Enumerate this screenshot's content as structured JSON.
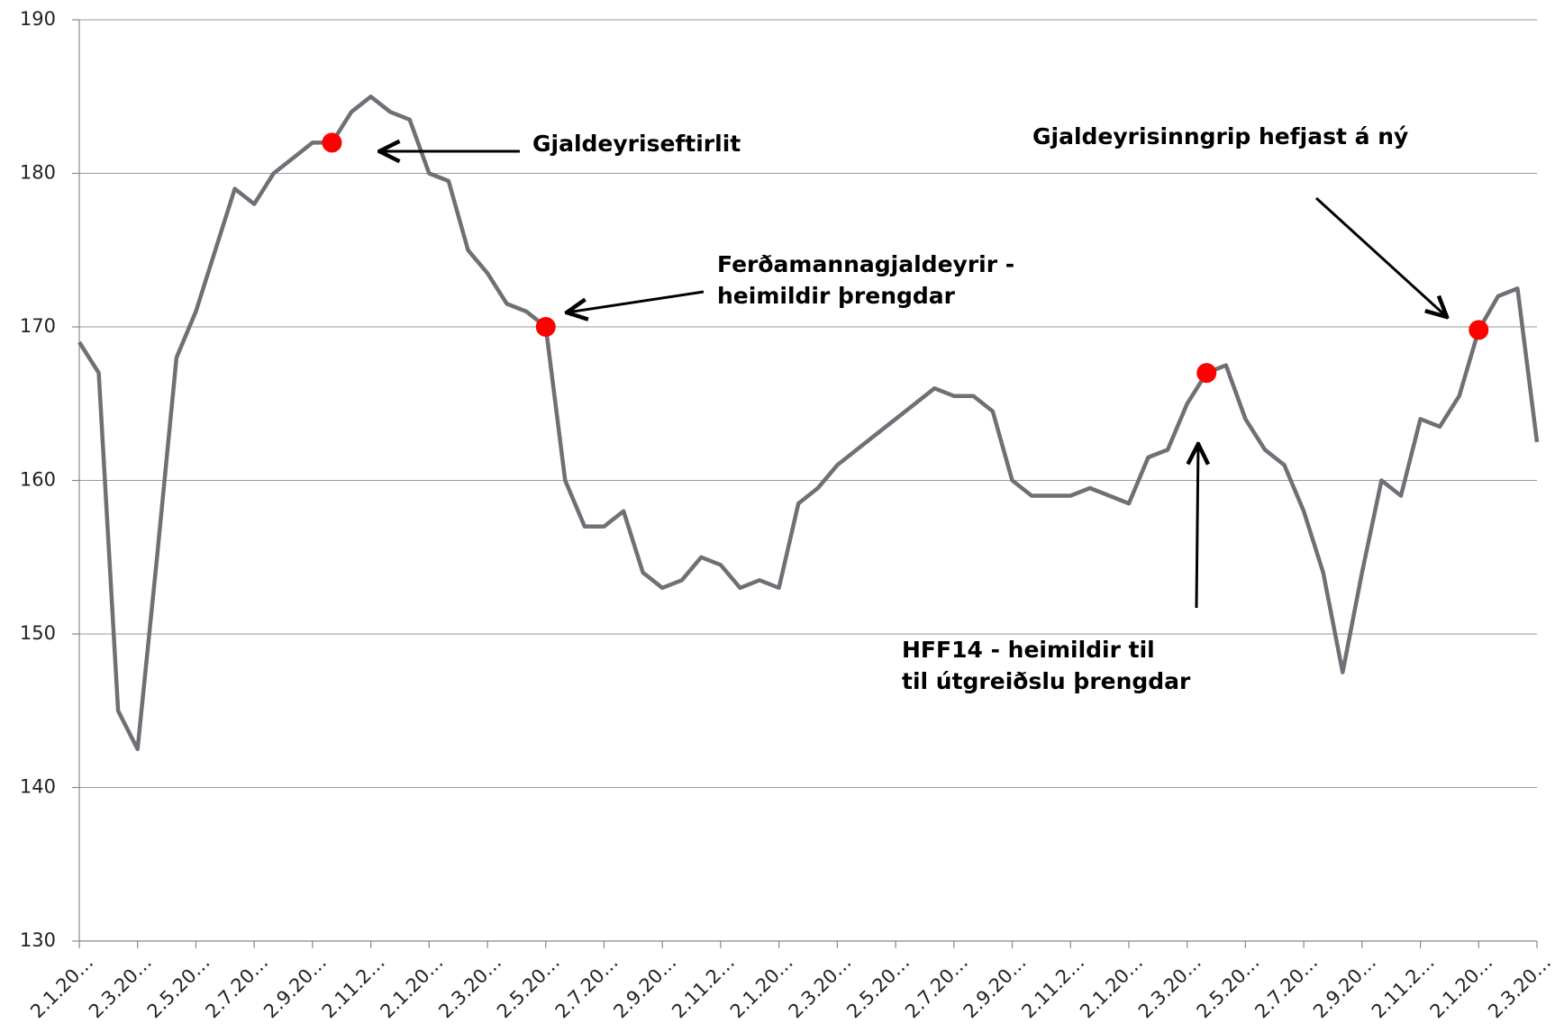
{
  "chart_data": {
    "type": "line",
    "categories": [
      "2.1.20…",
      null,
      null,
      "2.3.20…",
      null,
      null,
      "2.5.20…",
      null,
      null,
      "2.7.20…",
      null,
      null,
      "2.9.20…",
      null,
      null,
      "2.11.2…",
      null,
      null,
      "2.1.20…",
      null,
      null,
      "2.3.20…",
      null,
      null,
      "2.5.20…",
      null,
      null,
      "2.7.20…",
      null,
      null,
      "2.9.20…",
      null,
      null,
      "2.11.2…",
      null,
      null,
      "2.1.20…",
      null,
      null,
      "2.3.20…",
      null,
      null,
      "2.5.20…",
      null,
      null,
      "2.7.20…",
      null,
      null,
      "2.9.20…",
      null,
      null,
      "2.11.2…",
      null,
      null,
      "2.1.20…",
      null,
      null,
      "2.3.20…",
      null,
      null,
      "2.5.20…",
      null,
      null,
      "2.7.20…",
      null,
      null,
      "2.9.20…",
      null,
      null,
      "2.11.2…",
      null,
      null,
      "2.1.20…",
      null,
      null,
      "2.3.20…"
    ],
    "values": [
      169,
      167,
      145,
      142.5,
      155,
      168,
      171,
      175,
      179,
      178,
      180,
      181,
      182,
      182,
      184,
      185,
      184,
      183.5,
      180,
      179.5,
      175,
      173.5,
      171.5,
      171,
      170,
      160,
      157,
      157,
      158,
      154,
      153,
      153.5,
      155,
      154.5,
      153,
      153.5,
      153,
      158.5,
      159.5,
      161,
      162,
      163,
      164,
      165,
      166,
      165.5,
      165.5,
      164.5,
      160,
      159,
      159,
      159,
      159.5,
      159,
      158.5,
      161.5,
      162,
      165,
      167,
      167.5,
      164,
      162,
      161,
      158,
      154,
      147.5,
      154,
      160,
      159,
      164,
      163.5,
      165.5,
      169.8,
      172,
      172.5,
      162.5
    ],
    "color": "#6f6f76",
    "ylim": [
      130,
      190
    ],
    "yticks": [
      130,
      140,
      150,
      160,
      170,
      180,
      190
    ],
    "grid": true,
    "annotations": [
      {
        "lines": [
          "Gjaldeyriseftirlit"
        ],
        "point": 13,
        "color": "#ff0000"
      },
      {
        "lines": [
          "Ferðamannagjaldeyrir  -",
          "heimildir þrengdar"
        ],
        "point": 24,
        "color": "#ff0000"
      },
      {
        "lines": [
          "HFF14 - heimildir  til",
          "til útgreiðslu þrengdar"
        ],
        "point": 58,
        "color": "#ff0000"
      },
      {
        "lines": [
          "Gjaldeyrisinngrip hefjast á ný"
        ],
        "point": 72,
        "color": "#ff0000"
      }
    ]
  }
}
